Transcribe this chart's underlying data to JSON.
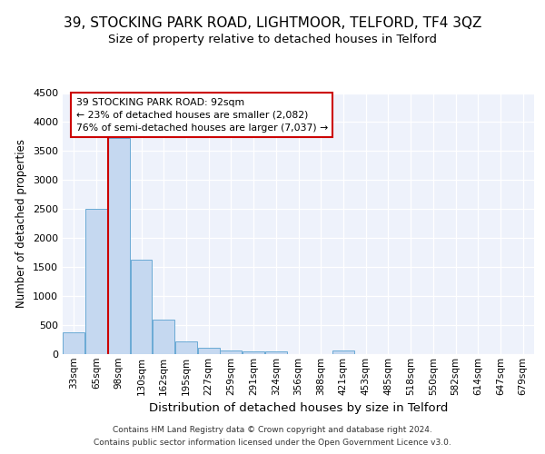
{
  "title": "39, STOCKING PARK ROAD, LIGHTMOOR, TELFORD, TF4 3QZ",
  "subtitle": "Size of property relative to detached houses in Telford",
  "xlabel": "Distribution of detached houses by size in Telford",
  "ylabel": "Number of detached properties",
  "footer_line1": "Contains HM Land Registry data © Crown copyright and database right 2024.",
  "footer_line2": "Contains public sector information licensed under the Open Government Licence v3.0.",
  "categories": [
    "33sqm",
    "65sqm",
    "98sqm",
    "130sqm",
    "162sqm",
    "195sqm",
    "227sqm",
    "259sqm",
    "291sqm",
    "324sqm",
    "356sqm",
    "388sqm",
    "421sqm",
    "453sqm",
    "485sqm",
    "518sqm",
    "550sqm",
    "582sqm",
    "614sqm",
    "647sqm",
    "679sqm"
  ],
  "values": [
    370,
    2510,
    3720,
    1630,
    590,
    225,
    110,
    65,
    45,
    40,
    0,
    0,
    60,
    0,
    0,
    0,
    0,
    0,
    0,
    0,
    0
  ],
  "bar_color": "#c5d8f0",
  "bar_edge_color": "#6aaad4",
  "annotation_text_line1": "39 STOCKING PARK ROAD: 92sqm",
  "annotation_text_line2": "← 23% of detached houses are smaller (2,082)",
  "annotation_text_line3": "76% of semi-detached houses are larger (7,037) →",
  "annotation_box_color": "#ffffff",
  "annotation_border_color": "#cc0000",
  "prop_line_bar_index": 2,
  "ylim": [
    0,
    4500
  ],
  "background_color": "#eef2fb",
  "grid_color": "#ffffff",
  "title_fontsize": 11,
  "subtitle_fontsize": 9.5,
  "ylabel_fontsize": 8.5,
  "xlabel_fontsize": 9.5
}
